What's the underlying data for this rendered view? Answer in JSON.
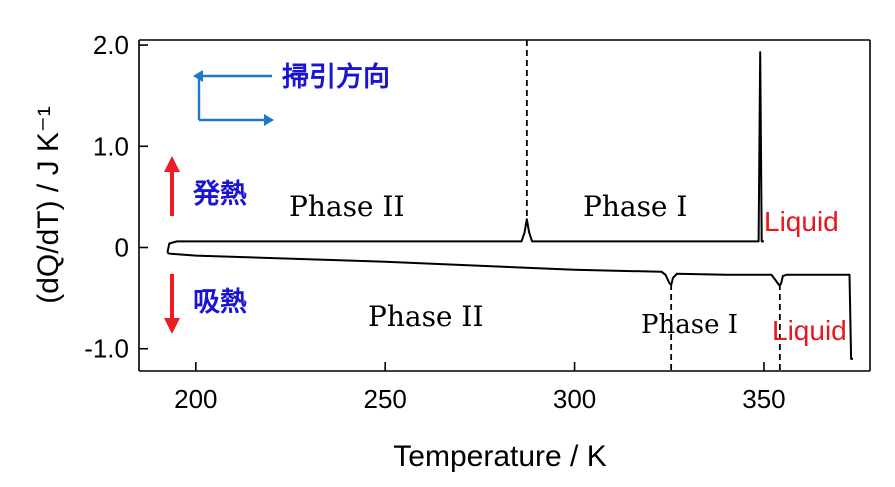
{
  "chart_data": {
    "type": "line",
    "xlabel": "Temperature / K",
    "ylabel": "(dQ/dT) / J K⁻¹",
    "xlim": [
      185,
      378
    ],
    "ylim": [
      -1.22,
      2.05
    ],
    "x_ticks": [
      200,
      250,
      300,
      350
    ],
    "x_tick_labels": [
      "200",
      "250",
      "300",
      "350"
    ],
    "y_ticks": [
      2.0,
      1.0,
      0,
      -1.0
    ],
    "y_tick_labels": [
      "2.0",
      "1.0",
      "0",
      "-1.0"
    ],
    "grid": false,
    "series": [
      {
        "x": [
          192.5,
          193,
          195,
          220,
          250,
          280,
          286.0,
          286.8,
          287.4,
          288.0,
          288.8,
          295,
          320,
          345,
          348.6,
          349.0,
          349.4,
          350
        ],
        "values": [
          -0.05,
          0.04,
          0.06,
          0.06,
          0.06,
          0.06,
          0.06,
          0.15,
          0.28,
          0.15,
          0.06,
          0.06,
          0.06,
          0.06,
          0.06,
          1.93,
          0.06,
          0.06
        ]
      },
      {
        "x": [
          192.5,
          193,
          200,
          250,
          300,
          323,
          324,
          325,
          325.5,
          326,
          327,
          340,
          352,
          353,
          354,
          354.5,
          355,
          356,
          372.6,
          373.0,
          373.5
        ],
        "values": [
          -0.05,
          -0.06,
          -0.08,
          -0.14,
          -0.22,
          -0.24,
          -0.27,
          -0.35,
          -0.37,
          -0.3,
          -0.26,
          -0.27,
          -0.27,
          -0.32,
          -0.37,
          -0.36,
          -0.28,
          -0.27,
          -0.27,
          -1.1,
          -1.1
        ]
      }
    ],
    "transition_lines": {
      "heating": [
        287.4
      ],
      "cooling": [
        325.5,
        354.2
      ]
    },
    "annotations": {
      "sweep": "掃引方向",
      "exo": "発熱",
      "endo": "吸熱",
      "phase2_top": "Phase II",
      "phase1_top": "Phase I",
      "liquid_top": "Liquid",
      "phase2_bottom": "Phase II",
      "phase1_bottom": "Phase I",
      "liquid_bottom": "Liquid"
    },
    "colors": {
      "trace": "#000000",
      "liquid_text": "#e8161d",
      "jp_text": "#1a14d6",
      "red_arrow": "#ee1d23",
      "blue_arrow": "#1e78c8"
    }
  }
}
